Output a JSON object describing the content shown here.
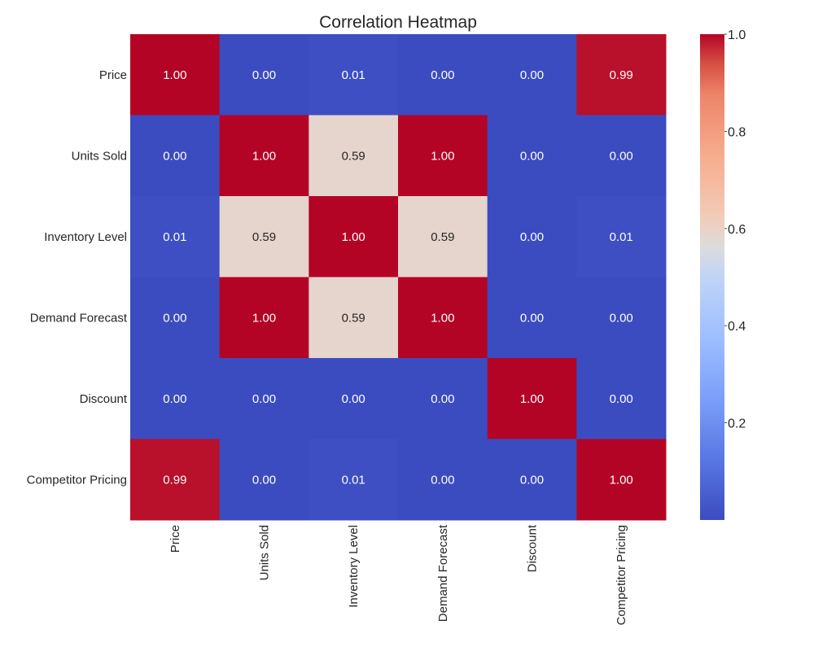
{
  "chart_data": {
    "type": "heatmap",
    "title": "Correlation Heatmap",
    "xlabel": "",
    "ylabel": "",
    "x_categories": [
      "Price",
      "Units Sold",
      "Inventory Level",
      "Demand Forecast",
      "Discount",
      "Competitor Pricing"
    ],
    "y_categories": [
      "Price",
      "Units Sold",
      "Inventory Level",
      "Demand Forecast",
      "Discount",
      "Competitor Pricing"
    ],
    "values": [
      [
        1.0,
        0.0,
        0.01,
        0.0,
        0.0,
        0.99
      ],
      [
        0.0,
        1.0,
        0.59,
        1.0,
        0.0,
        0.0
      ],
      [
        0.01,
        0.59,
        1.0,
        0.59,
        0.0,
        0.01
      ],
      [
        0.0,
        1.0,
        0.59,
        1.0,
        0.0,
        0.0
      ],
      [
        0.0,
        0.0,
        0.0,
        0.0,
        1.0,
        0.0
      ],
      [
        0.99,
        0.0,
        0.01,
        0.0,
        0.0,
        1.0
      ]
    ],
    "value_format": "2f",
    "colormap": "coolwarm",
    "colorbar": {
      "range": [
        0.0,
        1.0
      ],
      "ticks": [
        0.2,
        0.4,
        0.6,
        0.8,
        1.0
      ],
      "tick_labels": [
        "0.2",
        "0.4",
        "0.6",
        "0.8",
        "1.0"
      ]
    },
    "grid": false
  }
}
